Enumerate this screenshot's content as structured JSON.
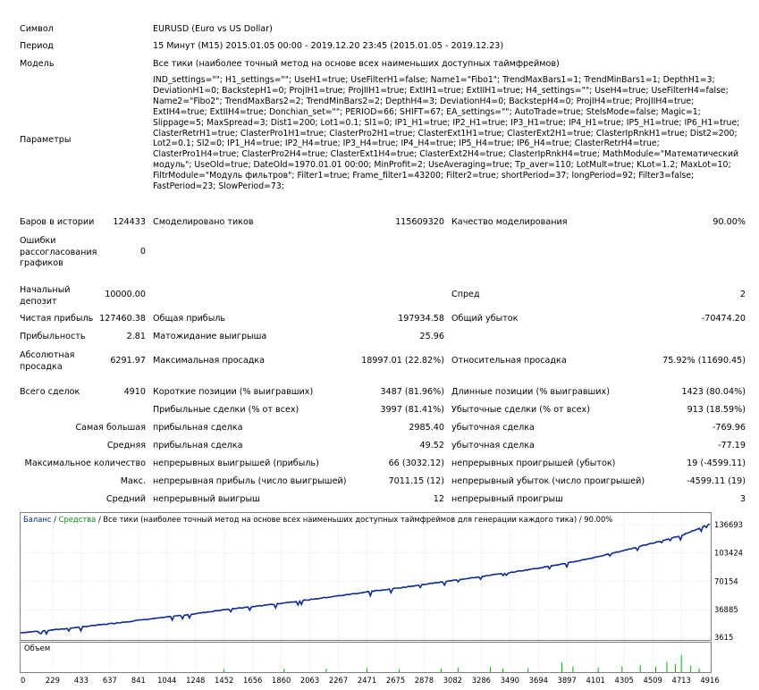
{
  "labels": {
    "symbol": "Символ",
    "period": "Период",
    "model": "Модель",
    "params": "Параметры",
    "bars": "Баров в истории",
    "errors": "Ошибки рассогласования графиков",
    "deposit": "Начальный депозит",
    "net_profit": "Чистая прибыль",
    "profit_factor": "Прибыльность",
    "abs_drawdown": "Абсолютная просадка",
    "total_trades": "Всего сделок",
    "largest": "Самая большая",
    "average": "Средняя",
    "max_count": "Максимальное количество",
    "max_amount": "Макс.",
    "avg_count": "Средний"
  },
  "values": {
    "symbol": "EURUSD (Euro vs US Dollar)",
    "period": "15 Минут (M15) 2015.01.05 00:00 - 2019.12.20 23:45 (2015.01.05 - 2019.12.23)",
    "model": "Все тики (наиболее точный метод на основе всех наименьших доступных таймфреймов)",
    "params": "IND_settings=\"\"; H1_settings=\"\"; UseH1=true; UseFilterH1=false; Name1=\"Fibo1\"; TrendMaxBars1=1; TrendMinBars1=1; DepthH1=3; DeviationH1=0; BackstepH1=0; ProjIH1=true; ProjIIH1=true; ExtIH1=true; ExtIIH1=true; H4_settings=\"\"; UseH4=true; UseFilterH4=false; Name2=\"Fibo2\"; TrendMaxBars2=2; TrendMinBars2=2; DepthH4=3; DeviationH4=0; BackstepH4=0; ProjIH4=true; ProjIIH4=true; ExtIH4=true; ExtIIH4=true; Donchian_set=\"\"; PERIOD=66; SHIFT=67; EA_settings=\"\"; AutoTrade=true; StelsMode=false; Magic=1; Slippage=5; MaxSpread=3; Dist1=200; Lot1=0.1; Sl1=0; IP1_H1=true; IP2_H1=true; IP3_H1=true; IP4_H1=true; IP5_H1=true; IP6_H1=true; ClasterRetrH1=true; ClasterPro1H1=true; ClasterPro2H1=true; ClasterExt1H1=true; ClasterExt2H1=true; ClasterIpRnkH1=true; Dist2=200; Lot2=0.1; Sl2=0; IP1_H4=true; IP2_H4=true; IP3_H4=true; IP4_H4=true; IP5_H4=true; IP6_H4=true; ClasterRetrH4=true; ClasterPro1H4=true; ClasterPro2H4=true; ClasterExt1H4=true; ClasterExt2H4=true; ClasterIpRnkH4=true; MathModule=\"Математический модуль\"; UseOld=true; DateOld=1970.01.01 00:00; MinProfit=2; UseAveraging=true; Tp_aver=110; LotMult=true; KLot=1.2; MaxLot=10; FiltrModule=\"Модуль фильтров\"; Filter1=true; Frame_filter1=43200; Filter2=true; shortPeriod=37; longPeriod=92; Filter3=false; FastPeriod=23; SlowPeriod=73;",
    "bars": "124433",
    "ticks_label": "Смоделировано тиков",
    "ticks": "115609320",
    "quality_label": "Качество моделирования",
    "quality": "90.00%",
    "errors": "0",
    "deposit": "10000.00",
    "spread_label": "Спред",
    "spread": "2",
    "net_profit": "127460.38",
    "gross_profit_label": "Общая прибыль",
    "gross_profit": "197934.58",
    "gross_loss_label": "Общий убыток",
    "gross_loss": "-70474.20",
    "profit_factor": "2.81",
    "expected_payoff_label": "Матожидание выигрыша",
    "expected_payoff": "25.96",
    "abs_drawdown": "6291.97",
    "max_drawdown_label": "Максимальная просадка",
    "max_drawdown": "18997.01 (22.82%)",
    "rel_drawdown_label": "Относительная просадка",
    "rel_drawdown": "75.92% (11690.45)",
    "total_trades": "4910",
    "short_label": "Короткие позиции (% выигравших)",
    "short": "3487 (81.96%)",
    "long_label": "Длинные позиции (% выигравших)",
    "long": "1423 (80.04%)",
    "profit_trades_label": "Прибыльные сделки (% от всех)",
    "profit_trades": "3997 (81.41%)",
    "loss_trades_label": "Убыточные сделки (% от всех)",
    "loss_trades": "913 (18.59%)",
    "largest_profit_label": "прибыльная сделка",
    "largest_profit": "2985.40",
    "largest_loss_label": "убыточная сделка",
    "largest_loss": "-769.96",
    "average_profit_label": "прибыльная сделка",
    "average_profit": "49.52",
    "average_loss_label": "убыточная сделка",
    "average_loss": "-77.19",
    "max_consec_wins_label": "непрерывных выигрышей (прибыль)",
    "max_consec_wins": "66 (3032.12)",
    "max_consec_losses_label": "непрерывных проигрышей (убыток)",
    "max_consec_losses": "19 (-4599.11)",
    "max_consec_profit_label": "непрерывная прибыль (число выигрышей)",
    "max_consec_profit": "7011.15 (12)",
    "max_consec_loss_label": "непрерывный убыток (число проигрышей)",
    "max_consec_loss": "-4599.11 (19)",
    "avg_consec_wins_label": "непрерывный выигрыш",
    "avg_consec_wins": "12",
    "avg_consec_losses_label": "непрерывный проигрыш",
    "avg_consec_losses": "3"
  },
  "chart_data": {
    "type": "line",
    "legend": {
      "balance": "Баланс",
      "sep1": " / ",
      "equity": "Средства",
      "rest": " / Все тики (наиболее точный метод на основе всех наименьших доступных таймфреймов для генерации каждого тика) / 90.00%"
    },
    "colors": {
      "balance": "#0a2b8f",
      "equity": "#0a8f1a",
      "volume": "#00b000",
      "grid": "#c8c8c8"
    },
    "y_ticks": [
      "136693",
      "103424",
      "70154",
      "36885",
      "3615"
    ],
    "ylim": [
      3615,
      136693
    ],
    "x_ticks": [
      "0",
      "229",
      "433",
      "637",
      "841",
      "1044",
      "1248",
      "1452",
      "1656",
      "1860",
      "2063",
      "2267",
      "2471",
      "2675",
      "2878",
      "3082",
      "3286",
      "3490",
      "3694",
      "3897",
      "4101",
      "4305",
      "4509",
      "4713",
      "4916"
    ],
    "xlim": [
      0,
      4916
    ],
    "series": [
      {
        "name": "Баланс",
        "values": [
          [
            0,
            10000
          ],
          [
            229,
            13200
          ],
          [
            433,
            16800
          ],
          [
            637,
            20500
          ],
          [
            841,
            24600
          ],
          [
            1044,
            28300
          ],
          [
            1248,
            32400
          ],
          [
            1452,
            36900
          ],
          [
            1656,
            40600
          ],
          [
            1860,
            44600
          ],
          [
            2063,
            48800
          ],
          [
            2267,
            53200
          ],
          [
            2471,
            57800
          ],
          [
            2675,
            62000
          ],
          [
            2878,
            66600
          ],
          [
            3082,
            71200
          ],
          [
            3286,
            76000
          ],
          [
            3490,
            80500
          ],
          [
            3694,
            85800
          ],
          [
            3897,
            91500
          ],
          [
            4101,
            98500
          ],
          [
            4305,
            106500
          ],
          [
            4509,
            115000
          ],
          [
            4713,
            124000
          ],
          [
            4916,
            137460
          ]
        ]
      }
    ],
    "volume_label": "Объем",
    "volume_spikes": [
      [
        1450,
        0.1
      ],
      [
        1880,
        0.12
      ],
      [
        2180,
        0.12
      ],
      [
        2470,
        0.14
      ],
      [
        2700,
        0.1
      ],
      [
        3000,
        0.12
      ],
      [
        3120,
        0.16
      ],
      [
        3350,
        0.18
      ],
      [
        3440,
        0.12
      ],
      [
        3620,
        0.14
      ],
      [
        3860,
        0.34
      ],
      [
        3940,
        0.2
      ],
      [
        4120,
        0.16
      ],
      [
        4290,
        0.2
      ],
      [
        4420,
        0.24
      ],
      [
        4530,
        0.18
      ],
      [
        4610,
        0.36
      ],
      [
        4670,
        0.28
      ],
      [
        4713,
        0.6
      ],
      [
        4780,
        0.22
      ],
      [
        4840,
        0.14
      ]
    ]
  }
}
